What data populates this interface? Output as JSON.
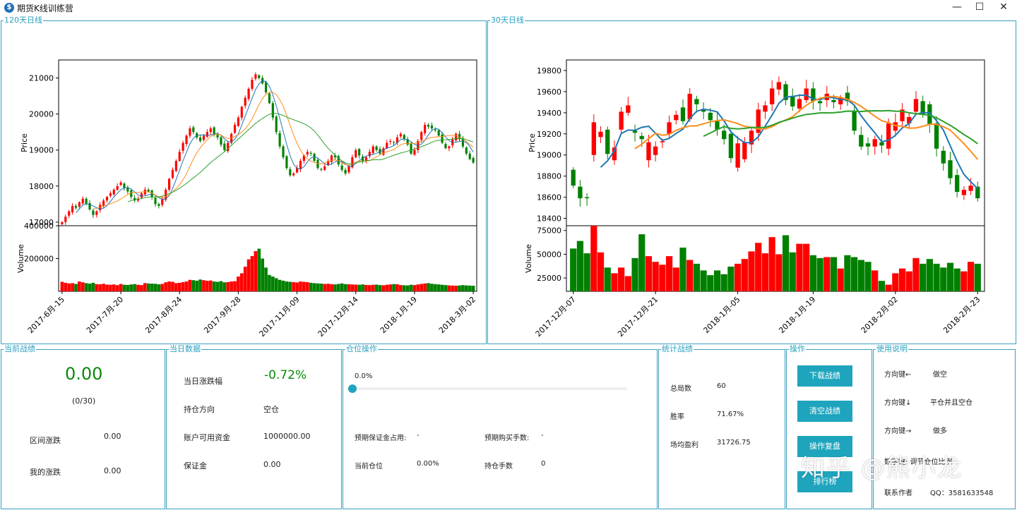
{
  "window": {
    "title": "期货K线训练营",
    "icon": "dollar-app-icon",
    "minimize": "—",
    "maximize": "☐",
    "close": "✕"
  },
  "panels": {
    "chart120_label": "120天日线",
    "chart30_label": "30天日线",
    "current_score_label": "当前战绩",
    "today_data_label": "当日数据",
    "position_op_label": "仓位操作",
    "stats_label": "统计战绩",
    "operations_label": "操作",
    "help_label": "使用说明"
  },
  "current_score": {
    "score": "0.00",
    "progress_text": "(0/30)",
    "range_change_label": "区间涨跌",
    "range_change_value": "0.00",
    "my_change_label": "我的涨跌",
    "my_change_value": "0.00"
  },
  "today_data": {
    "change_label": "当日涨跌幅",
    "change_value": "-0.72%",
    "direction_label": "持仓方向",
    "direction_value": "空仓",
    "funds_label": "账户可用资金",
    "funds_value": "1000000.00",
    "margin_label": "保证金",
    "margin_value": "0.00"
  },
  "position_op": {
    "slider_value_text": "0.0%",
    "slider_value": 0.0,
    "expected_margin_label": "预期保证金占用:",
    "expected_margin_value": "-",
    "expected_lots_label": "预期购买手数:",
    "expected_lots_value": "-",
    "current_position_label": "当前仓位",
    "current_position_value": "0.00%",
    "held_lots_label": "持仓手数",
    "held_lots_value": "0"
  },
  "stats": {
    "total_label": "总局数",
    "total_value": "60",
    "winrate_label": "胜率",
    "winrate_value": "71.67%",
    "avg_profit_label": "场均盈利",
    "avg_profit_value": "31726.75"
  },
  "operations": {
    "download_label": "下载战绩",
    "clear_label": "清空战绩",
    "review_label": "操作复盘",
    "ranking_label": "排行榜"
  },
  "help": {
    "key_left_label": "方向键←",
    "key_left_action": "做空",
    "key_down_label": "方向键↓",
    "key_down_action": "平仓并且空仓",
    "key_right_label": "方向键→",
    "key_right_action": "做多",
    "key_num_label": "数字键: 调节仓位比例",
    "contact_label": "联系作者",
    "contact_value": "QQ：3581633548"
  },
  "watermark": "知乎 @熊小龙",
  "colors": {
    "up": "#ff0000",
    "down": "#008000",
    "accent": "#1ea5bd",
    "ma5": "#1f77b4",
    "ma10": "#ff8c1a",
    "ma20": "#2ca02c"
  },
  "chart_data": [
    {
      "type": "candlestick",
      "title": "120天日线",
      "ylabel": "Price",
      "ylim": [
        16900,
        21500
      ],
      "yticks": [
        17000,
        18000,
        19000,
        20000,
        21000
      ],
      "xticks": [
        "2017-6月-15",
        "2017-7月-20",
        "2017-8月-24",
        "2017-9月-28",
        "2017-11月-09",
        "2017-12月-14",
        "2018-1月-19",
        "2018-3月-02"
      ],
      "n": 120,
      "close": [
        17000,
        17150,
        17300,
        17450,
        17400,
        17550,
        17650,
        17500,
        17350,
        17200,
        17300,
        17480,
        17600,
        17700,
        17800,
        17900,
        18000,
        18100,
        17950,
        17850,
        17700,
        17600,
        17650,
        17800,
        17900,
        17850,
        17700,
        17500,
        17450,
        17650,
        17900,
        18200,
        18450,
        18700,
        18950,
        19200,
        19400,
        19600,
        19500,
        19350,
        19250,
        19400,
        19500,
        19600,
        19450,
        19350,
        19150,
        19000,
        19200,
        19450,
        19700,
        19900,
        20200,
        20450,
        20700,
        20950,
        21100,
        21000,
        20850,
        20600,
        20300,
        19900,
        19500,
        19100,
        18800,
        18500,
        18300,
        18350,
        18500,
        18700,
        18850,
        18950,
        18900,
        18700,
        18500,
        18450,
        18550,
        18700,
        18850,
        18800,
        18600,
        18450,
        18350,
        18550,
        18800,
        19000,
        18850,
        18700,
        18800,
        18950,
        19100,
        19000,
        18900,
        19050,
        19200,
        19250,
        19200,
        19350,
        19450,
        19300,
        19150,
        18900,
        19000,
        19250,
        19500,
        19700,
        19650,
        19600,
        19550,
        19400,
        19200,
        19050,
        19100,
        19300,
        19450,
        19300,
        19100,
        18900,
        18750,
        18650
      ],
      "volume": [
        58000,
        52000,
        48000,
        50000,
        45000,
        60000,
        55000,
        50000,
        47000,
        52000,
        44000,
        43000,
        46000,
        41000,
        40000,
        42000,
        38000,
        45000,
        40000,
        39000,
        42000,
        44000,
        40000,
        38000,
        50000,
        48000,
        47000,
        46000,
        43000,
        45000,
        55000,
        60000,
        58000,
        50000,
        52000,
        56000,
        60000,
        70000,
        68000,
        65000,
        72000,
        68000,
        64000,
        66000,
        60000,
        58000,
        62000,
        55000,
        56000,
        60000,
        62000,
        90000,
        110000,
        150000,
        195000,
        215000,
        245000,
        260000,
        200000,
        145000,
        100000,
        90000,
        80000,
        70000,
        65000,
        60000,
        58000,
        56000,
        54000,
        60000,
        58000,
        56000,
        52000,
        50000,
        48000,
        47000,
        45000,
        46000,
        44000,
        42000,
        45000,
        48000,
        44000,
        43000,
        42000,
        41000,
        40000,
        42000,
        39000,
        38000,
        40000,
        41000,
        38000,
        37000,
        40000,
        42000,
        44000,
        43000,
        38000,
        37000,
        36000,
        40000,
        38000,
        42000,
        45000,
        48000,
        50000,
        46000,
        44000,
        42000,
        40000,
        38000,
        36000,
        35000,
        34000,
        36000,
        38000,
        36000,
        35000,
        34000
      ],
      "volume_ylim": [
        0,
        400000
      ],
      "volume_yticks": [
        200000,
        400000
      ],
      "moving_averages": [
        5,
        10,
        20
      ]
    },
    {
      "type": "candlestick",
      "title": "30天日线",
      "ylabel": "Price",
      "ylim": [
        18330,
        19900
      ],
      "yticks": [
        18400,
        18600,
        18800,
        19000,
        19200,
        19400,
        19600,
        19800
      ],
      "xticks": [
        "2017-12月-07",
        "2017-12月-21",
        "2018-1月-05",
        "2018-1月-19",
        "2018-2月-02",
        "2018-2月-23"
      ],
      "n": 60,
      "open": [
        18860,
        18700,
        18600,
        19000,
        19170,
        19240,
        18950,
        19240,
        19400,
        19230,
        19180,
        18950,
        19000,
        19120,
        19200,
        19330,
        19450,
        19340,
        19530,
        19430,
        19400,
        19320,
        19230,
        19200,
        18880,
        18960,
        19100,
        19210,
        19410,
        19480,
        19620,
        19670,
        19560,
        19440,
        19520,
        19630,
        19510,
        19520,
        19520,
        19480,
        19590,
        19420,
        19190,
        19110,
        19080,
        19120,
        19060,
        19230,
        19320,
        19300,
        19410,
        19510,
        19480,
        19300,
        19040,
        18950,
        18810,
        18620,
        18660,
        18700
      ],
      "close": [
        18710,
        18590,
        18590,
        19310,
        19220,
        19010,
        19070,
        19410,
        19470,
        19210,
        19150,
        19120,
        19080,
        19130,
        19310,
        19380,
        19320,
        19580,
        19480,
        19410,
        19330,
        19240,
        19150,
        18970,
        19110,
        19120,
        19230,
        19430,
        19470,
        19630,
        19690,
        19520,
        19460,
        19530,
        19630,
        19510,
        19490,
        19580,
        19500,
        19540,
        19510,
        19230,
        19080,
        19080,
        19150,
        19090,
        19300,
        19310,
        19430,
        19360,
        19530,
        19380,
        19290,
        19060,
        18920,
        18780,
        18650,
        18670,
        18710,
        18590
      ],
      "volume": [
        56000,
        64000,
        51000,
        80000,
        52000,
        36000,
        30000,
        36000,
        27000,
        46000,
        71000,
        48000,
        42000,
        39000,
        48000,
        36000,
        57000,
        44000,
        40000,
        33000,
        28000,
        33000,
        29000,
        37000,
        40000,
        45000,
        53000,
        62000,
        51000,
        68000,
        50000,
        70000,
        52000,
        61000,
        61000,
        49000,
        46000,
        47000,
        47000,
        35000,
        49000,
        47000,
        44000,
        42000,
        33000,
        22000,
        18000,
        30000,
        35000,
        32000,
        46000,
        40000,
        45000,
        40000,
        36000,
        41000,
        35000,
        32000,
        42000,
        40000
      ],
      "volume_ylim": [
        11000,
        80000
      ],
      "volume_yticks": [
        25000,
        50000,
        75000
      ],
      "moving_averages": [
        5,
        10,
        20
      ]
    }
  ]
}
